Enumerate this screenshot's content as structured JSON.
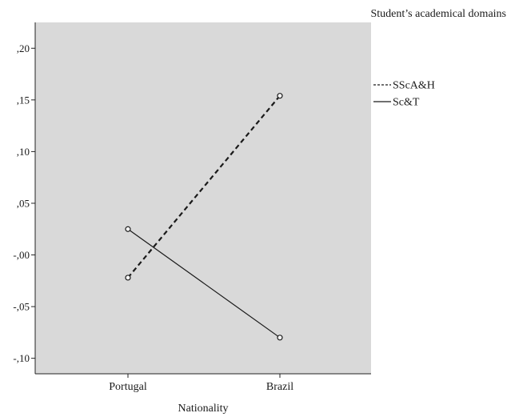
{
  "chart_data": {
    "type": "line",
    "title": "",
    "legend_title": "Student’s academical domains",
    "xlabel": "Nationality",
    "ylabel": "",
    "categories": [
      "Portugal",
      "Brazil"
    ],
    "ylim": [
      -0.115,
      0.225
    ],
    "yticks": [
      0.2,
      0.15,
      0.1,
      0.05,
      0.0,
      -0.05,
      -0.1
    ],
    "ytick_labels": [
      ",20",
      ",15",
      ",10",
      ",05",
      "-,00",
      "-,05",
      "-,10"
    ],
    "grid": false,
    "plot_background": "#d9d9d9",
    "legend_position": "right",
    "series": [
      {
        "name": "SScA&H",
        "values": [
          -0.022,
          0.154
        ],
        "line_style": "dashed",
        "color": "#1a1a1a"
      },
      {
        "name": "Sc&T",
        "values": [
          0.025,
          -0.08
        ],
        "line_style": "solid",
        "color": "#1a1a1a"
      }
    ]
  }
}
